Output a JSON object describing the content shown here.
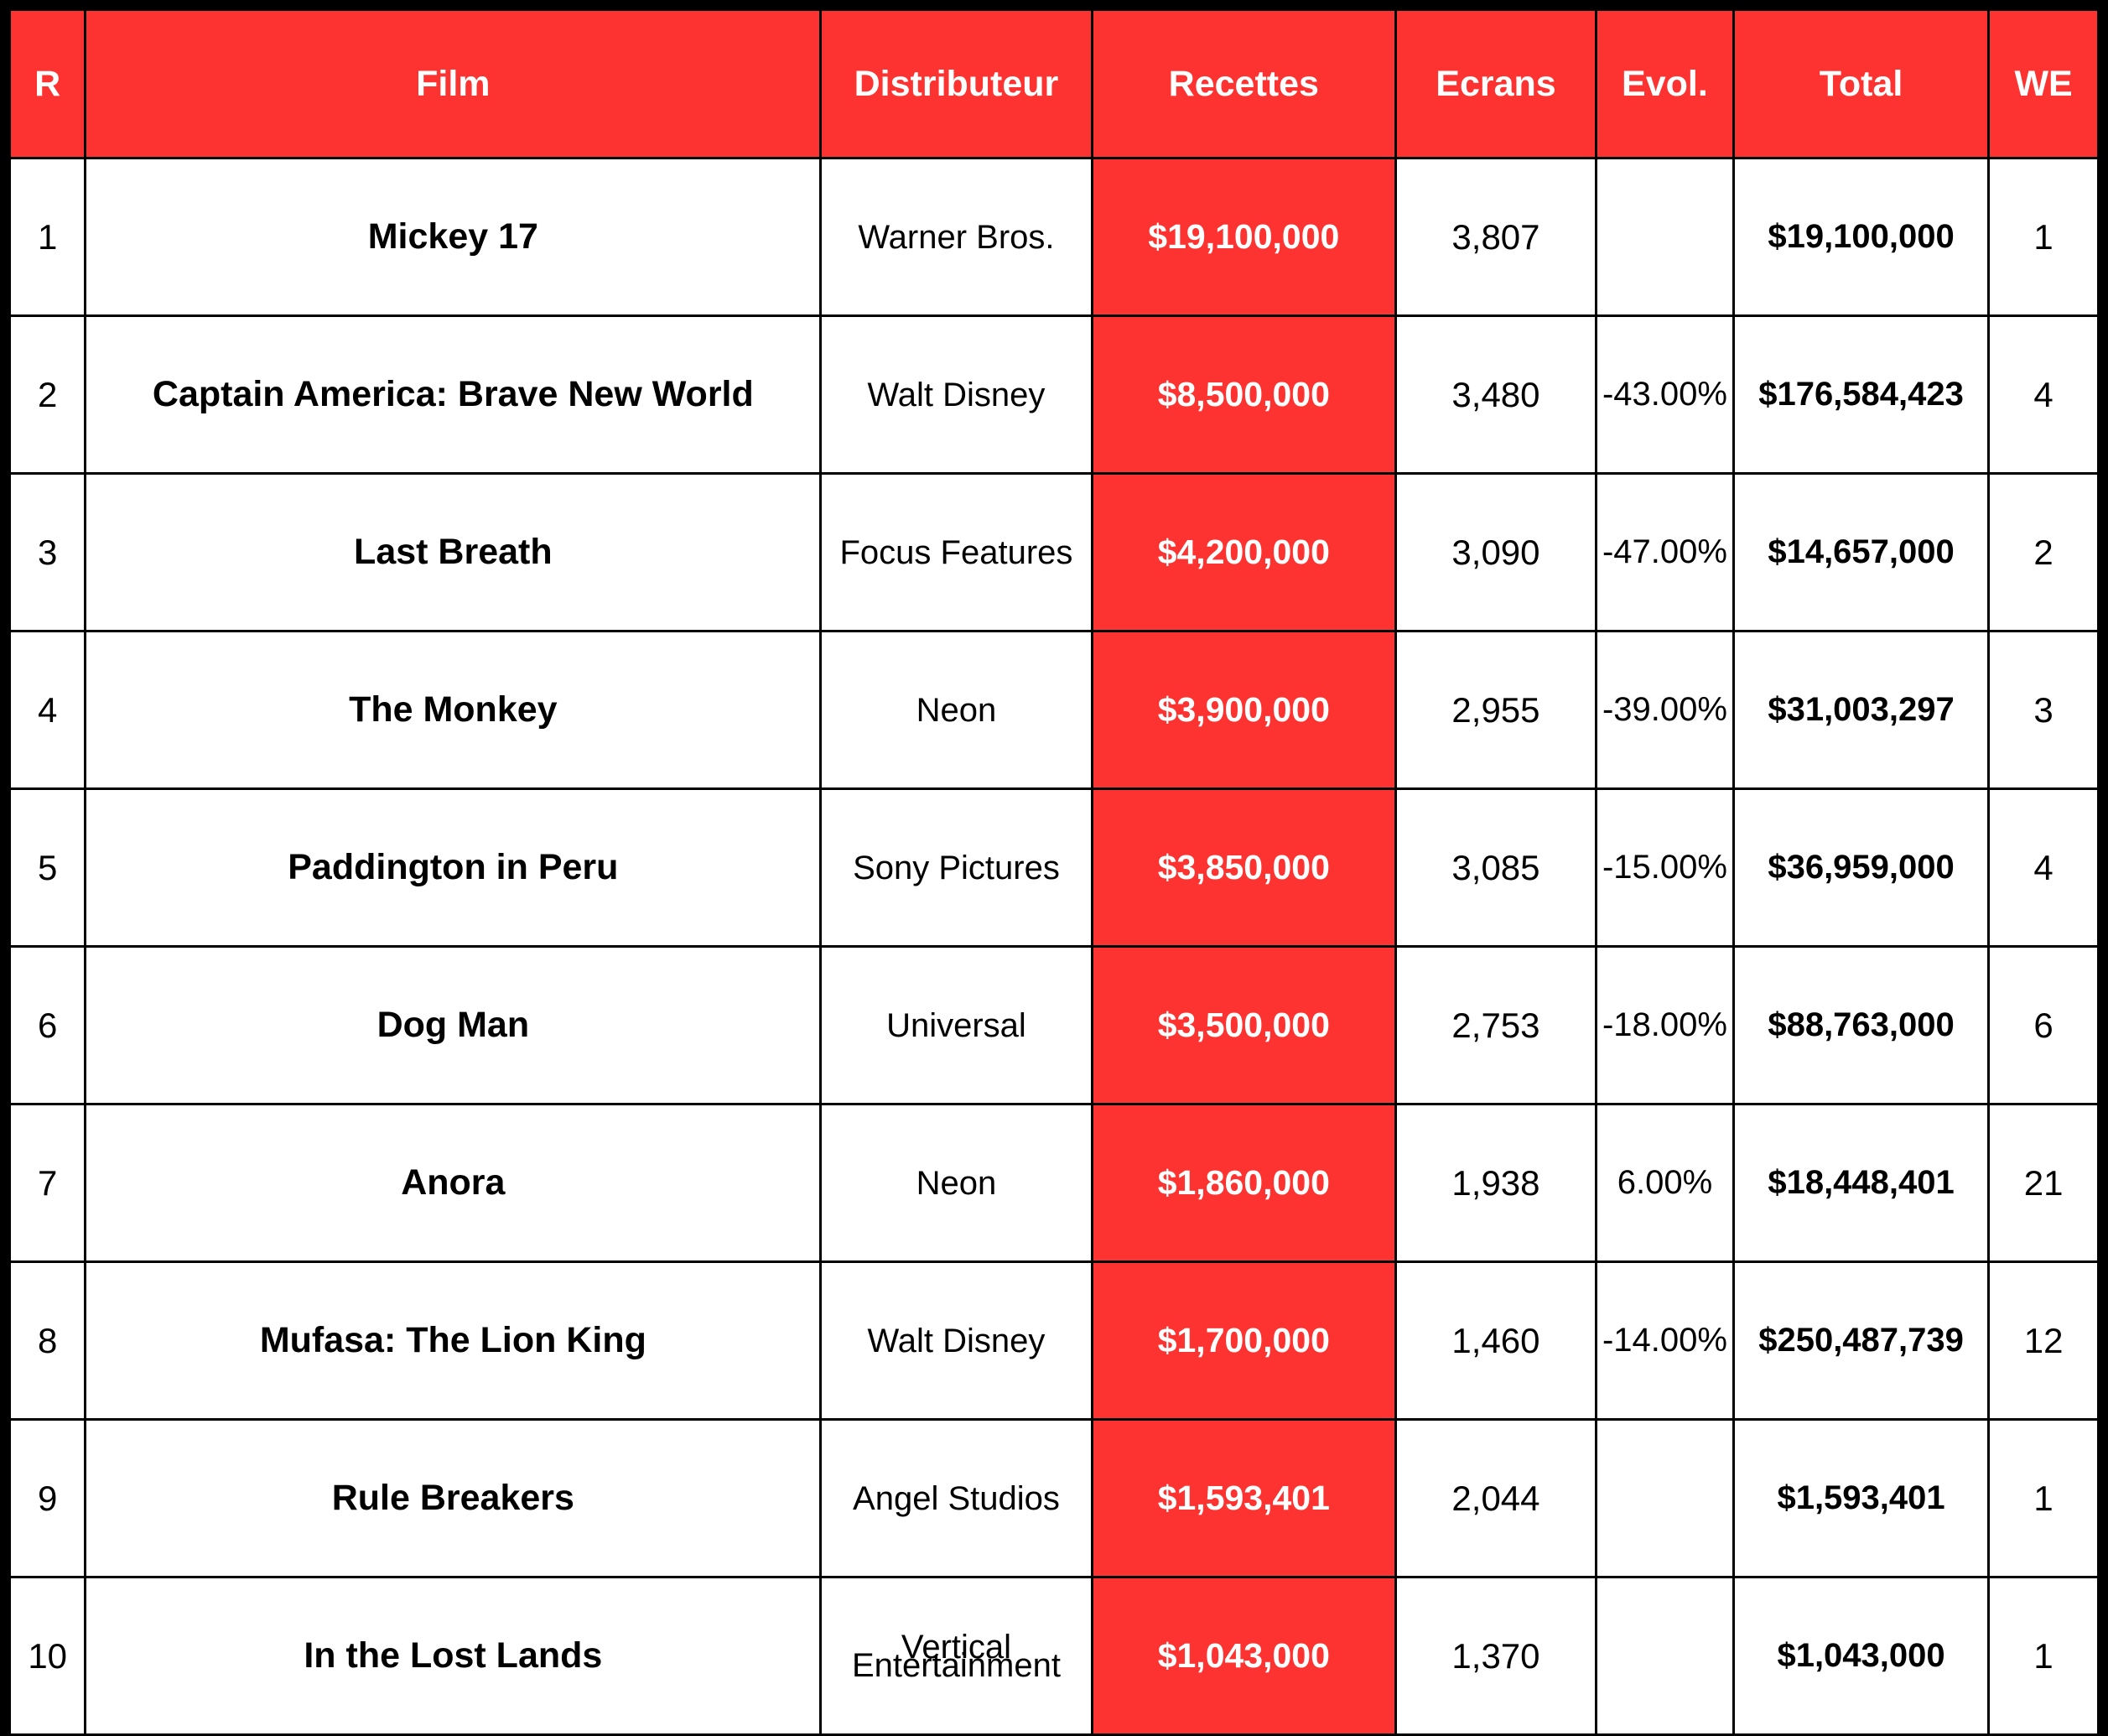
{
  "colors": {
    "accent_red": "#fc3330",
    "header_text": "#ffffff",
    "cell_text": "#000000",
    "table_background": "#ffffff",
    "frame_border": "#000000"
  },
  "chart_data": {
    "type": "table",
    "columns": [
      "R",
      "Film",
      "Distributeur",
      "Recettes",
      "Ecrans",
      "Evol.",
      "Total",
      "WE"
    ],
    "rows": [
      [
        "1",
        "Mickey 17",
        "Warner Bros.",
        "$19,100,000",
        "3,807",
        "",
        "$19,100,000",
        "1"
      ],
      [
        "2",
        "Captain America: Brave New World",
        "Walt Disney",
        "$8,500,000",
        "3,480",
        "-43.00%",
        "$176,584,423",
        "4"
      ],
      [
        "3",
        "Last Breath",
        "Focus Features",
        "$4,200,000",
        "3,090",
        "-47.00%",
        "$14,657,000",
        "2"
      ],
      [
        "4",
        "The Monkey",
        "Neon",
        "$3,900,000",
        "2,955",
        "-39.00%",
        "$31,003,297",
        "3"
      ],
      [
        "5",
        "Paddington in Peru",
        "Sony Pictures",
        "$3,850,000",
        "3,085",
        "-15.00%",
        "$36,959,000",
        "4"
      ],
      [
        "6",
        "Dog Man",
        "Universal",
        "$3,500,000",
        "2,753",
        "-18.00%",
        "$88,763,000",
        "6"
      ],
      [
        "7",
        "Anora",
        "Neon",
        "$1,860,000",
        "1,938",
        "6.00%",
        "$18,448,401",
        "21"
      ],
      [
        "8",
        "Mufasa: The Lion King",
        "Walt Disney",
        "$1,700,000",
        "1,460",
        "-14.00%",
        "$250,487,739",
        "12"
      ],
      [
        "9",
        "Rule Breakers",
        "Angel Studios",
        "$1,593,401",
        "2,044",
        "",
        "$1,593,401",
        "1"
      ],
      [
        "10",
        "In the Lost Lands",
        "Vertical Entertainment",
        "$1,043,000",
        "1,370",
        "",
        "$1,043,000",
        "1"
      ]
    ],
    "layout": {
      "header_style": "red background, white bold text",
      "highlighted_column": "Recettes",
      "grid": "black borders on all cells, thick black outer frame"
    }
  }
}
